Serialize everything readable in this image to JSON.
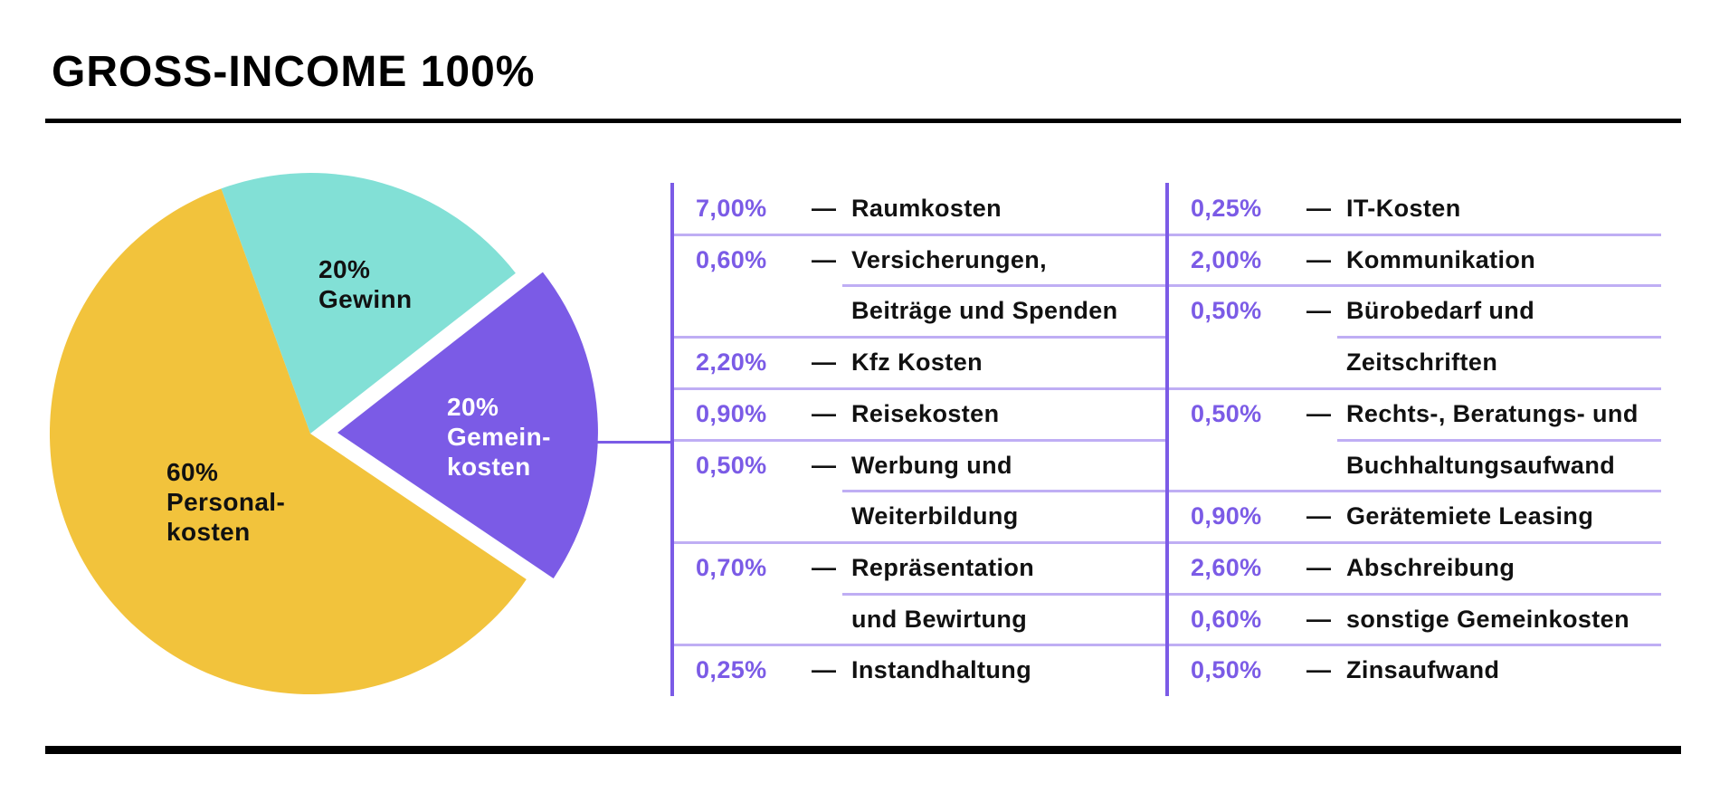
{
  "page": {
    "title": "GROSS-INCOME 100%"
  },
  "colors": {
    "accent_purple": "#7B5BE6",
    "separator_purple": "#BFAEF4",
    "pie_yellow": "#F2C33C",
    "pie_teal": "#82E0D6",
    "text_black": "#111111",
    "background": "#FFFFFF"
  },
  "chart_data": {
    "type": "pie",
    "title": "GROSS-INCOME 100%",
    "unit": "%",
    "start_angle_deg": 110,
    "direction": "clockwise",
    "legend_position": "inside-slices",
    "slices": [
      {
        "name": "Gewinn",
        "value": 20,
        "color": "#82E0D6",
        "text_color": "#111111",
        "exploded": false,
        "label_lines": [
          "20%",
          "Gewinn"
        ]
      },
      {
        "name": "Gemeinkosten",
        "value": 20,
        "color": "#7B5BE6",
        "text_color": "#FFFFFF",
        "exploded": true,
        "label_lines": [
          "20%",
          "Gemein-",
          "kosten"
        ]
      },
      {
        "name": "Personalkosten",
        "value": 60,
        "color": "#F2C33C",
        "text_color": "#111111",
        "exploded": false,
        "label_lines": [
          "60%",
          "Personal-",
          "kosten"
        ]
      }
    ],
    "breakdown_left": [
      {
        "percent": "7,00%",
        "value": 7.0,
        "label_lines": [
          "Raumkosten"
        ]
      },
      {
        "percent": "0,60%",
        "value": 0.6,
        "label_lines": [
          "Versicherungen,",
          "Beiträge und Spenden"
        ]
      },
      {
        "percent": "2,20%",
        "value": 2.2,
        "label_lines": [
          "Kfz Kosten"
        ]
      },
      {
        "percent": "0,90%",
        "value": 0.9,
        "label_lines": [
          "Reisekosten"
        ]
      },
      {
        "percent": "0,50%",
        "value": 0.5,
        "label_lines": [
          "Werbung und",
          "Weiterbildung"
        ]
      },
      {
        "percent": "0,70%",
        "value": 0.7,
        "label_lines": [
          "Repräsentation",
          "und Bewirtung"
        ]
      },
      {
        "percent": "0,25%",
        "value": 0.25,
        "label_lines": [
          "Instandhaltung"
        ]
      }
    ],
    "breakdown_right": [
      {
        "percent": "0,25%",
        "value": 0.25,
        "label_lines": [
          "IT-Kosten"
        ]
      },
      {
        "percent": "2,00%",
        "value": 2.0,
        "label_lines": [
          "Kommunikation"
        ]
      },
      {
        "percent": "0,50%",
        "value": 0.5,
        "label_lines": [
          "Bürobedarf und",
          "Zeitschriften"
        ]
      },
      {
        "percent": "0,50%",
        "value": 0.5,
        "label_lines": [
          "Rechts-, Beratungs- und",
          "Buchhaltungsaufwand"
        ]
      },
      {
        "percent": "0,90%",
        "value": 0.9,
        "label_lines": [
          "Gerätemiete Leasing"
        ]
      },
      {
        "percent": "2,60%",
        "value": 2.6,
        "label_lines": [
          "Abschreibung"
        ]
      },
      {
        "percent": "0,60%",
        "value": 0.6,
        "label_lines": [
          "sonstige Gemeinkosten"
        ]
      },
      {
        "percent": "0,50%",
        "value": 0.5,
        "label_lines": [
          "Zinsaufwand"
        ]
      }
    ]
  }
}
